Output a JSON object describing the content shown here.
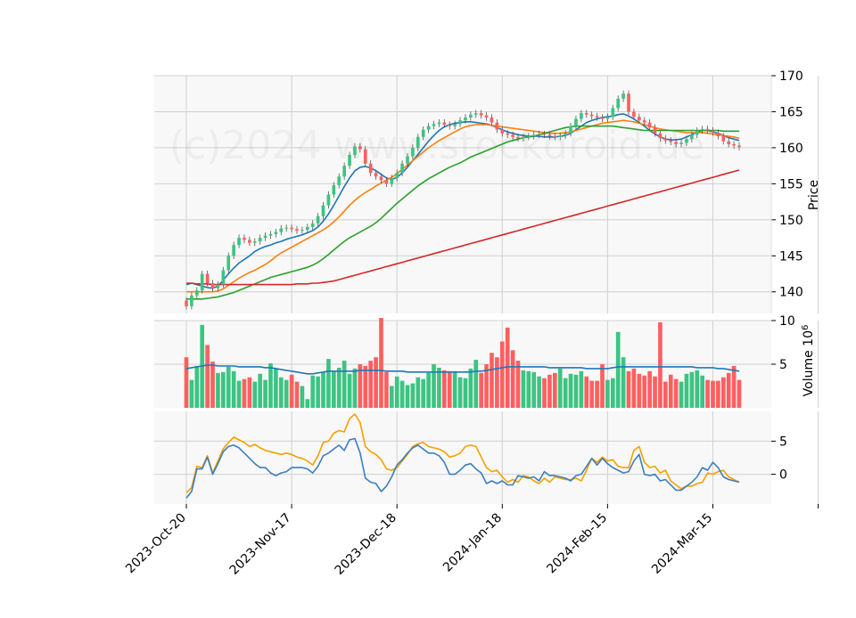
{
  "chart_data": {
    "type": "candlestick",
    "watermark": "(c)2024 www.stockdroid.de",
    "x_tick_labels": [
      "2023-Oct-20",
      "2023-Nov-17",
      "2023-Dec-18",
      "2024-Jan-18",
      "2024-Feb-15",
      "2024-Mar-15"
    ],
    "price_panel": {
      "ylabel": "Price",
      "ylim": [
        137,
        170
      ],
      "y_ticks": [
        140,
        145,
        150,
        155,
        160,
        165,
        170
      ],
      "close": [
        138.0,
        139.5,
        140.2,
        142.5,
        141.2,
        140.5,
        141.0,
        143.0,
        145.0,
        146.5,
        147.5,
        147.2,
        146.8,
        147.0,
        147.5,
        147.8,
        148.0,
        148.3,
        148.8,
        148.9,
        148.7,
        148.5,
        148.6,
        149.0,
        149.5,
        150.5,
        152.0,
        153.5,
        154.8,
        156.0,
        157.5,
        159.0,
        160.2,
        159.8,
        157.8,
        156.5,
        156.0,
        155.5,
        155.0,
        155.8,
        156.5,
        157.8,
        158.8,
        160.0,
        161.5,
        162.5,
        163.0,
        163.3,
        163.5,
        163.2,
        163.0,
        163.3,
        163.8,
        164.2,
        164.6,
        164.8,
        164.5,
        164.2,
        163.5,
        162.5,
        162.0,
        161.8,
        161.5,
        161.3,
        161.5,
        161.6,
        161.8,
        161.9,
        161.8,
        161.6,
        161.5,
        161.7,
        162.0,
        163.0,
        164.0,
        164.8,
        164.6,
        164.4,
        164.2,
        164.0,
        164.3,
        165.5,
        166.8,
        167.5,
        165.0,
        164.3,
        163.8,
        163.5,
        162.8,
        162.0,
        161.3,
        161.0,
        160.8,
        160.5,
        160.7,
        161.2,
        161.8,
        162.4,
        162.6,
        162.4,
        162.1,
        161.6,
        160.9,
        160.5,
        160.3,
        160.1
      ],
      "series": [
        {
          "name": "",
          "color": "#1f77b4",
          "values": [
            141.0,
            141.2,
            141.0,
            140.8,
            140.6,
            140.5,
            140.8,
            141.6,
            142.5,
            143.3,
            144.0,
            144.5,
            145.0,
            145.6,
            146.0,
            146.3,
            146.5,
            146.8,
            147.0,
            147.3,
            147.5,
            147.7,
            147.9,
            148.2,
            148.5,
            149.0,
            149.8,
            150.8,
            152.0,
            153.3,
            154.6,
            155.8,
            156.8,
            157.3,
            157.4,
            157.2,
            156.8,
            156.3,
            155.8,
            155.6,
            155.9,
            156.5,
            157.3,
            158.2,
            159.1,
            160.0,
            160.9,
            161.7,
            162.4,
            162.9,
            163.2,
            163.4,
            163.5,
            163.6,
            163.6,
            163.5,
            163.4,
            163.3,
            163.1,
            162.8,
            162.5,
            162.2,
            162.0,
            161.8,
            161.7,
            161.6,
            161.6,
            161.6,
            161.5,
            161.5,
            161.5,
            161.6,
            161.7,
            162.0,
            162.5,
            163.0,
            163.5,
            163.8,
            164.0,
            164.2,
            164.3,
            164.4,
            164.6,
            164.7,
            164.4,
            164.0,
            163.5,
            163.0,
            162.4,
            161.9,
            161.5,
            161.2,
            161.1,
            161.1,
            161.2,
            161.5,
            161.8,
            162.2,
            162.4,
            162.4,
            162.2,
            162.0,
            161.7,
            161.4,
            161.2,
            161.0
          ]
        },
        {
          "name": "",
          "color": "#ff7f0e",
          "values": [
            140.0,
            140.0,
            140.0,
            140.0,
            140.0,
            140.0,
            140.1,
            140.4,
            140.9,
            141.4,
            141.9,
            142.3,
            142.7,
            143.0,
            143.4,
            143.8,
            144.3,
            144.9,
            145.4,
            145.8,
            146.2,
            146.6,
            147.0,
            147.4,
            147.8,
            148.2,
            148.6,
            149.1,
            149.7,
            150.4,
            151.2,
            152.0,
            152.7,
            153.3,
            153.8,
            154.2,
            154.7,
            155.1,
            155.5,
            155.9,
            156.4,
            157.0,
            157.6,
            158.2,
            158.8,
            159.4,
            160.0,
            160.5,
            161.0,
            161.4,
            161.8,
            162.2,
            162.6,
            162.9,
            163.1,
            163.2,
            163.2,
            163.2,
            163.1,
            163.0,
            162.9,
            162.8,
            162.7,
            162.6,
            162.5,
            162.4,
            162.3,
            162.2,
            162.1,
            162.0,
            162.0,
            162.0,
            162.1,
            162.2,
            162.4,
            162.6,
            162.8,
            163.0,
            163.2,
            163.4,
            163.5,
            163.6,
            163.7,
            163.8,
            163.7,
            163.6,
            163.4,
            163.2,
            163.0,
            162.8,
            162.6,
            162.5,
            162.4,
            162.3,
            162.2,
            162.1,
            162.1,
            162.1,
            162.1,
            162.0,
            161.9,
            161.8,
            161.7,
            161.6,
            161.5,
            161.3
          ]
        },
        {
          "name": "",
          "color": "#2ca02c",
          "values": [
            139.0,
            139.0,
            139.0,
            139.0,
            139.1,
            139.2,
            139.3,
            139.5,
            139.7,
            139.9,
            140.2,
            140.5,
            140.8,
            141.1,
            141.4,
            141.7,
            142.0,
            142.2,
            142.4,
            142.6,
            142.8,
            143.0,
            143.2,
            143.4,
            143.7,
            144.1,
            144.6,
            145.2,
            145.8,
            146.4,
            147.0,
            147.5,
            147.9,
            148.3,
            148.7,
            149.1,
            149.6,
            150.2,
            150.9,
            151.6,
            152.3,
            152.9,
            153.5,
            154.1,
            154.7,
            155.2,
            155.7,
            156.1,
            156.5,
            156.9,
            157.3,
            157.6,
            157.9,
            158.3,
            158.7,
            159.0,
            159.3,
            159.6,
            159.9,
            160.2,
            160.5,
            160.8,
            161.0,
            161.2,
            161.4,
            161.5,
            161.6,
            161.8,
            162.0,
            162.2,
            162.4,
            162.6,
            162.8,
            162.9,
            163.0,
            163.0,
            163.0,
            163.0,
            163.0,
            163.0,
            163.0,
            163.0,
            162.9,
            162.8,
            162.7,
            162.6,
            162.5,
            162.4,
            162.4,
            162.4,
            162.4,
            162.4,
            162.4,
            162.4,
            162.4,
            162.4,
            162.4,
            162.4,
            162.4,
            162.4,
            162.4,
            162.4,
            162.3,
            162.3,
            162.3,
            162.3
          ]
        },
        {
          "name": "",
          "color": "#d62728",
          "values": [
            141.2,
            141.2,
            141.1,
            141.1,
            141.1,
            141.0,
            141.0,
            141.0,
            141.0,
            141.0,
            141.0,
            141.0,
            141.0,
            141.0,
            141.0,
            141.0,
            141.0,
            141.0,
            141.0,
            141.0,
            141.0,
            141.1,
            141.1,
            141.1,
            141.2,
            141.2,
            141.3,
            141.4,
            141.5,
            141.7,
            141.9,
            142.1,
            142.3,
            142.5,
            142.7,
            142.9,
            143.1,
            143.3,
            143.5,
            143.7,
            143.9,
            144.1,
            144.3,
            144.5,
            144.7,
            144.9,
            145.1,
            145.3,
            145.5,
            145.7,
            145.9,
            146.1,
            146.3,
            146.5,
            146.7,
            146.9,
            147.1,
            147.3,
            147.5,
            147.7,
            147.9,
            148.1,
            148.3,
            148.5,
            148.7,
            148.9,
            149.1,
            149.3,
            149.5,
            149.7,
            149.9,
            150.1,
            150.3,
            150.5,
            150.7,
            150.9,
            151.1,
            151.3,
            151.5,
            151.7,
            151.9,
            152.1,
            152.3,
            152.5,
            152.7,
            152.9,
            153.1,
            153.3,
            153.5,
            153.7,
            153.9,
            154.1,
            154.3,
            154.5,
            154.7,
            154.9,
            155.1,
            155.3,
            155.5,
            155.7,
            155.9,
            156.1,
            156.3,
            156.5,
            156.7,
            156.9
          ]
        }
      ]
    },
    "volume_panel": {
      "ylabel": "Volume  10^6",
      "ylim": [
        0,
        10
      ],
      "y_ticks": [
        5,
        10
      ],
      "up_color": "#3cc482",
      "down_color": "#ff5f5f",
      "values": [
        5.8,
        3.2,
        4.8,
        9.5,
        7.2,
        5.3,
        4.0,
        4.1,
        4.7,
        4.2,
        3.1,
        3.3,
        3.5,
        3.0,
        3.9,
        3.2,
        5.1,
        4.5,
        3.5,
        3.2,
        3.8,
        3.0,
        2.5,
        1.0,
        3.7,
        3.6,
        4.1,
        5.6,
        4.2,
        4.6,
        5.4,
        3.9,
        4.5,
        5.0,
        4.8,
        5.4,
        5.8,
        10.3,
        4.1,
        2.5,
        3.6,
        3.1,
        2.6,
        2.8,
        3.5,
        3.3,
        4.0,
        5.0,
        4.6,
        4.3,
        4.2,
        4.2,
        3.5,
        3.4,
        4.5,
        5.5,
        4.0,
        5.0,
        6.3,
        5.8,
        7.6,
        9.2,
        6.6,
        5.4,
        4.3,
        4.2,
        4.1,
        3.6,
        3.4,
        3.8,
        4.0,
        4.5,
        3.4,
        3.9,
        3.8,
        4.2,
        3.6,
        3.1,
        3.1,
        5.0,
        3.2,
        3.4,
        8.7,
        5.8,
        4.2,
        4.5,
        3.9,
        3.7,
        4.2,
        3.6,
        9.8,
        3.0,
        3.8,
        3.3,
        3.0,
        3.9,
        4.1,
        4.3,
        3.7,
        3.2,
        3.1,
        3.1,
        3.5,
        4.0,
        4.8,
        3.2
      ],
      "ma": [
        4.5,
        4.6,
        4.7,
        4.8,
        4.9,
        4.9,
        4.8,
        4.8,
        4.8,
        4.8,
        4.7,
        4.7,
        4.7,
        4.7,
        4.7,
        4.6,
        4.6,
        4.5,
        4.4,
        4.3,
        4.2,
        4.1,
        4.0,
        3.9,
        3.9,
        4.0,
        4.1,
        4.2,
        4.2,
        4.2,
        4.2,
        4.2,
        4.2,
        4.3,
        4.3,
        4.3,
        4.3,
        4.3,
        4.2,
        4.2,
        4.2,
        4.2,
        4.1,
        4.1,
        4.1,
        4.1,
        4.1,
        4.1,
        4.1,
        4.1,
        4.1,
        4.1,
        4.1,
        4.1,
        4.1,
        4.2,
        4.2,
        4.3,
        4.4,
        4.5,
        4.6,
        4.7,
        4.7,
        4.7,
        4.7,
        4.7,
        4.7,
        4.7,
        4.7,
        4.6,
        4.6,
        4.6,
        4.6,
        4.6,
        4.6,
        4.6,
        4.5,
        4.5,
        4.5,
        4.5,
        4.5,
        4.6,
        4.7,
        4.7,
        4.7,
        4.7,
        4.7,
        4.7,
        4.7,
        4.7,
        4.7,
        4.7,
        4.7,
        4.7,
        4.7,
        4.7,
        4.7,
        4.6,
        4.6,
        4.6,
        4.6,
        4.5,
        4.5,
        4.4,
        4.3,
        4.2
      ]
    },
    "macd_panel": {
      "ylim": [
        -4.5,
        9.5
      ],
      "y_ticks": [
        0,
        5
      ],
      "series": [
        {
          "name": "",
          "color": "#f5a000",
          "values": [
            -2.8,
            -2.0,
            1.2,
            1.0,
            2.8,
            0.2,
            2.0,
            3.8,
            4.8,
            5.6,
            5.2,
            4.8,
            4.2,
            4.5,
            4.0,
            3.6,
            3.4,
            3.2,
            3.0,
            3.2,
            3.0,
            2.6,
            2.4,
            2.0,
            1.4,
            2.8,
            4.8,
            5.0,
            6.2,
            6.6,
            6.4,
            8.4,
            9.1,
            7.8,
            4.2,
            3.4,
            3.0,
            2.2,
            0.8,
            0.6,
            1.0,
            2.0,
            3.0,
            4.2,
            4.6,
            4.8,
            4.2,
            4.0,
            3.8,
            3.4,
            2.6,
            2.8,
            3.2,
            4.2,
            4.4,
            4.2,
            2.6,
            1.0,
            0.4,
            0.6,
            -0.4,
            -1.2,
            -0.8,
            -1.2,
            -0.2,
            -0.4,
            -1.0,
            -1.4,
            -0.6,
            -1.2,
            -0.4,
            -0.6,
            -0.8,
            -0.8,
            -0.6,
            -1.0,
            0.6,
            2.4,
            1.8,
            2.6,
            2.0,
            2.2,
            1.2,
            1.0,
            1.0,
            3.6,
            4.2,
            1.8,
            1.0,
            1.2,
            0.2,
            0.6,
            -1.0,
            -1.6,
            -2.2,
            -1.8,
            -1.8,
            -1.4,
            -1.2,
            0.2,
            0.0,
            0.4,
            0.6,
            -0.4,
            -0.8,
            -1.2
          ]
        },
        {
          "name": "",
          "color": "#3b7ebf",
          "values": [
            -3.6,
            -2.6,
            0.8,
            0.8,
            2.6,
            0.0,
            1.6,
            3.4,
            4.2,
            4.4,
            4.0,
            3.2,
            2.4,
            1.6,
            1.0,
            1.0,
            0.2,
            -0.2,
            0.2,
            0.4,
            1.0,
            1.0,
            1.0,
            0.8,
            0.2,
            1.2,
            2.8,
            3.2,
            3.8,
            4.4,
            3.6,
            5.2,
            5.4,
            3.2,
            -0.6,
            -1.2,
            -1.4,
            -2.6,
            -1.8,
            -0.4,
            1.4,
            2.2,
            3.2,
            4.0,
            4.4,
            3.8,
            3.2,
            3.2,
            2.8,
            1.8,
            0.0,
            0.0,
            0.6,
            1.4,
            1.6,
            0.8,
            0.2,
            -1.4,
            -1.0,
            -1.4,
            -1.0,
            -1.6,
            -1.6,
            -0.2,
            -0.4,
            -0.6,
            -0.4,
            -1.0,
            0.4,
            -0.2,
            -0.2,
            -0.4,
            -0.6,
            -1.0,
            -0.2,
            0.0,
            1.2,
            2.4,
            1.4,
            2.4,
            1.6,
            1.0,
            0.6,
            0.2,
            0.4,
            2.0,
            3.0,
            0.0,
            -0.2,
            0.0,
            -1.0,
            -0.8,
            -1.6,
            -2.4,
            -2.4,
            -1.8,
            -1.2,
            -0.4,
            1.0,
            0.6,
            1.8,
            1.0,
            -0.4,
            -0.8,
            -1.0,
            -1.2
          ]
        }
      ]
    }
  }
}
